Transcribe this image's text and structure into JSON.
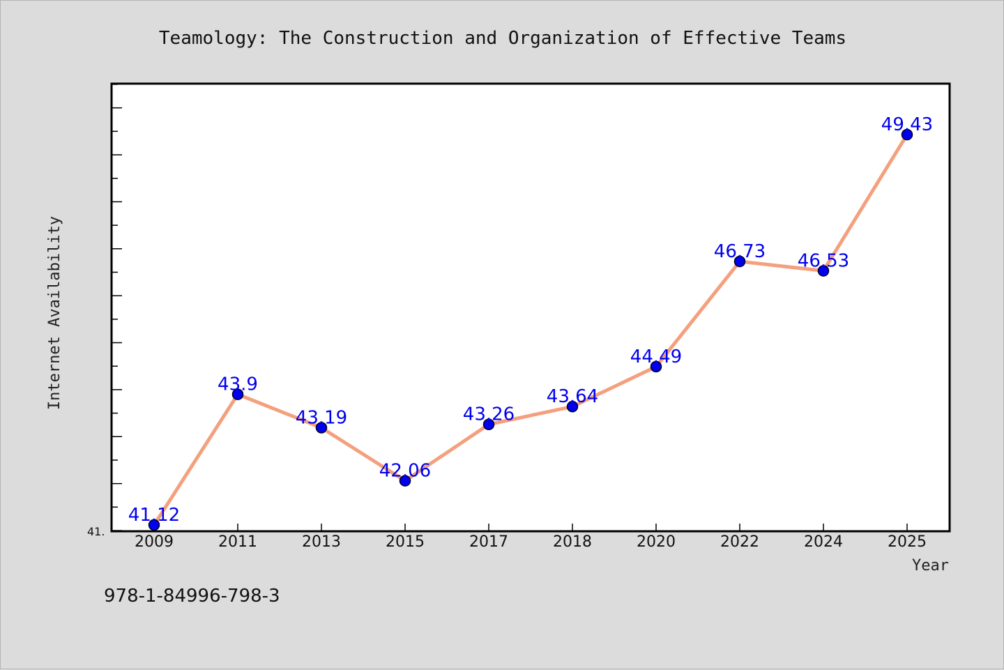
{
  "chart_data": {
    "type": "line",
    "title": "Teamology: The Construction and Organization of Effective Teams",
    "xlabel": "Year",
    "ylabel": "Internet Availability",
    "categories": [
      "2009",
      "2011",
      "2013",
      "2015",
      "2017",
      "2018",
      "2020",
      "2022",
      "2024",
      "2025"
    ],
    "series": [
      {
        "values": [
          41.12,
          43.9,
          43.19,
          42.06,
          43.26,
          43.64,
          44.49,
          46.73,
          46.53,
          49.43
        ],
        "labels": [
          "41.12",
          "43.9",
          "43.19",
          "42.06",
          "43.26",
          "43.64",
          "44.49",
          "46.73",
          "46.53",
          "49.43"
        ]
      }
    ],
    "ylim": [
      41.0,
      50.5
    ],
    "ytick_label": "41.",
    "grid": false,
    "colors": {
      "line": "#f4a07e",
      "marker": "#0000ee",
      "data_label": "#0000ee",
      "plot_bg": "#ffffff",
      "page_bg": "#dcdcdc"
    }
  },
  "footer": {
    "isbn": "978-1-84996-798-3"
  }
}
